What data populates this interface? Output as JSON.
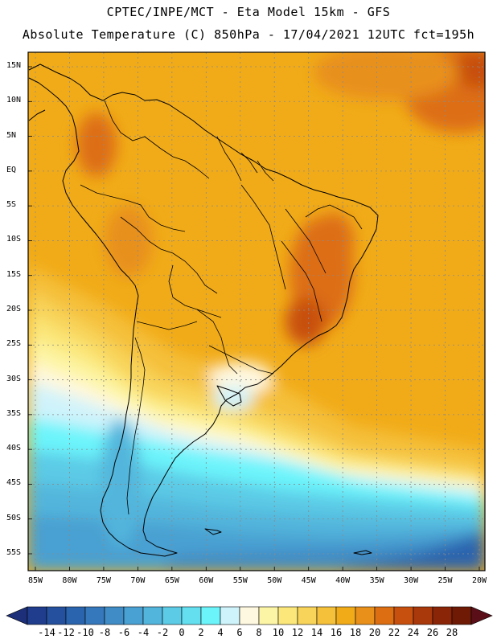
{
  "header": {
    "line1": "CPTEC/INPE/MCT -  Eta Model 15km - GFS",
    "line2": "Absolute Temperature (C) 850hPa - 17/04/2021 12UTC fct=195h"
  },
  "axes": {
    "lat_labels": [
      "15N",
      "10N",
      "5N",
      "EQ",
      "5S",
      "10S",
      "15S",
      "20S",
      "25S",
      "30S",
      "35S",
      "40S",
      "45S",
      "50S",
      "55S"
    ],
    "lon_labels": [
      "85W",
      "80W",
      "75W",
      "70W",
      "65W",
      "60W",
      "55W",
      "50W",
      "45W",
      "40W",
      "35W",
      "30W",
      "25W",
      "20W"
    ]
  },
  "colorbar": {
    "labels": [
      "-14",
      "-12",
      "-10",
      "-8",
      "-6",
      "-4",
      "-2",
      "0",
      "2",
      "4",
      "6",
      "8",
      "10",
      "12",
      "14",
      "16",
      "18",
      "20",
      "22",
      "24",
      "26",
      "28"
    ],
    "colors": [
      "#1f3d8c",
      "#24509e",
      "#2b64ae",
      "#3578bb",
      "#3f8cc6",
      "#49a0d2",
      "#52b5dc",
      "#5ccbe6",
      "#63dff0",
      "#6cf4fb",
      "#cff3fb",
      "#fff8e0",
      "#fdf5a6",
      "#fbe77a",
      "#f8d45a",
      "#f5c03a",
      "#f1ab18",
      "#e8901a",
      "#dd6e12",
      "#c8500e",
      "#a9380a",
      "#8b2507",
      "#6e1a05"
    ]
  },
  "map": {
    "region": "South America",
    "variable": "Absolute Temperature (C) 850hPa"
  }
}
